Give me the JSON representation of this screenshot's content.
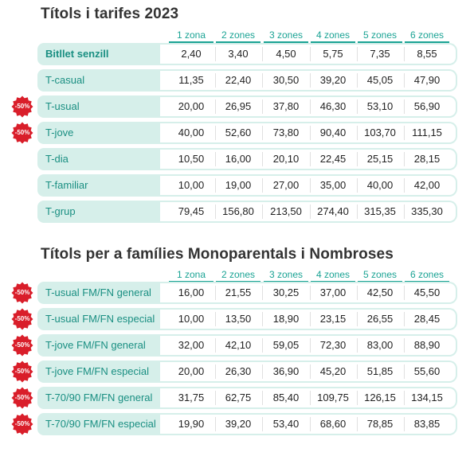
{
  "section1": {
    "title": "Títols i tarifes 2023",
    "zones": [
      "1 zona",
      "2 zones",
      "3 zones",
      "4 zones",
      "5 zones",
      "6 zones"
    ],
    "rows": [
      {
        "name": "Bitllet senzill",
        "discount": "",
        "values": [
          "2,40",
          "3,40",
          "4,50",
          "5,75",
          "7,35",
          "8,55"
        ]
      },
      {
        "name": "T-casual",
        "discount": "",
        "values": [
          "11,35",
          "22,40",
          "30,50",
          "39,20",
          "45,05",
          "47,90"
        ]
      },
      {
        "name": "T-usual",
        "discount": "-50%",
        "values": [
          "20,00",
          "26,95",
          "37,80",
          "46,30",
          "53,10",
          "56,90"
        ]
      },
      {
        "name": "T-jove",
        "discount": "-50%",
        "values": [
          "40,00",
          "52,60",
          "73,80",
          "90,40",
          "103,70",
          "111,15"
        ]
      },
      {
        "name": "T-dia",
        "discount": "",
        "values": [
          "10,50",
          "16,00",
          "20,10",
          "22,45",
          "25,15",
          "28,15"
        ]
      },
      {
        "name": "T-familiar",
        "discount": "",
        "values": [
          "10,00",
          "19,00",
          "27,00",
          "35,00",
          "40,00",
          "42,00"
        ]
      },
      {
        "name": "T-grup",
        "discount": "",
        "values": [
          "79,45",
          "156,80",
          "213,50",
          "274,40",
          "315,35",
          "335,30"
        ]
      }
    ]
  },
  "section2": {
    "title": "Títols per a famílies Monoparentals i Nombroses",
    "zones": [
      "1 zona",
      "2 zones",
      "3 zones",
      "4 zones",
      "5 zones",
      "6 zones"
    ],
    "rows": [
      {
        "name": "T-usual FM/FN general",
        "discount": "-50%",
        "values": [
          "16,00",
          "21,55",
          "30,25",
          "37,00",
          "42,50",
          "45,50"
        ]
      },
      {
        "name": "T-usual FM/FN especial",
        "discount": "-50%",
        "values": [
          "10,00",
          "13,50",
          "18,90",
          "23,15",
          "26,55",
          "28,45"
        ]
      },
      {
        "name": "T-jove FM/FN general",
        "discount": "-50%",
        "values": [
          "32,00",
          "42,10",
          "59,05",
          "72,30",
          "83,00",
          "88,90"
        ]
      },
      {
        "name": "T-jove FM/FN especial",
        "discount": "-50%",
        "values": [
          "20,00",
          "26,30",
          "36,90",
          "45,20",
          "51,85",
          "55,60"
        ]
      },
      {
        "name": "T-70/90 FM/FN general",
        "discount": "-50%",
        "values": [
          "31,75",
          "62,75",
          "85,40",
          "109,75",
          "126,15",
          "134,15"
        ]
      },
      {
        "name": "T-70/90 FM/FN especial",
        "discount": "-50%",
        "values": [
          "19,90",
          "39,20",
          "53,40",
          "68,60",
          "78,85",
          "83,85"
        ]
      }
    ]
  },
  "colors": {
    "accent": "#1aa394",
    "label_bg": "#d6efea",
    "badge": "#d91e2a"
  }
}
